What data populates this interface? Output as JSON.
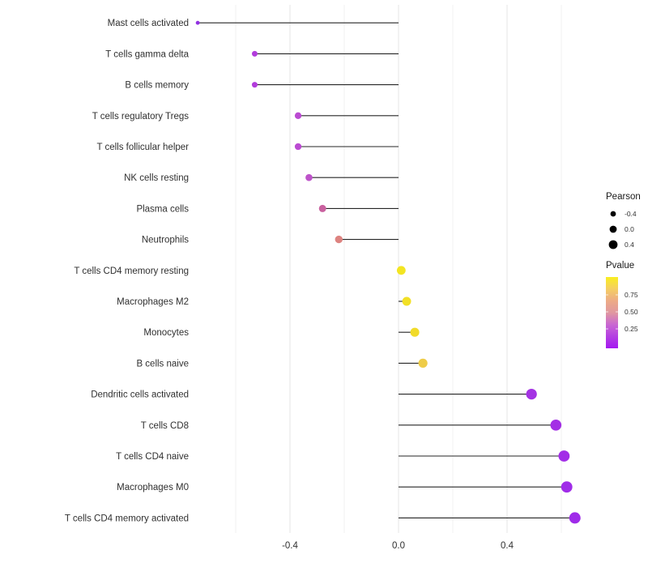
{
  "chart_data": {
    "type": "scatter",
    "subtype": "horizontal-lollipop",
    "title": "",
    "xlabel": "",
    "ylabel": "",
    "grid": "vertical-only",
    "baseline_x": 0.0,
    "xlim": [
      -0.76,
      0.7
    ],
    "x_tick_labels": [
      "-0.4",
      "0.0",
      "0.4"
    ],
    "x_tick_values": [
      -0.4,
      0.0,
      0.4
    ],
    "x_minor_grid_values": [
      -0.6,
      -0.2,
      0.2,
      0.6
    ],
    "rows": [
      {
        "label": "Mast cells activated",
        "pearson": -0.74,
        "color": "#9231E2"
      },
      {
        "label": "T cells gamma delta",
        "pearson": -0.53,
        "color": "#B23CDC"
      },
      {
        "label": "B cells memory",
        "pearson": -0.53,
        "color": "#B23CDC"
      },
      {
        "label": "T cells regulatory  Tregs",
        "pearson": -0.37,
        "color": "#BB4BD2"
      },
      {
        "label": "T cells follicular helper",
        "pearson": -0.37,
        "color": "#BB4BD2"
      },
      {
        "label": "NK cells resting",
        "pearson": -0.33,
        "color": "#BE53CA"
      },
      {
        "label": "Plasma cells",
        "pearson": -0.28,
        "color": "#C9619F"
      },
      {
        "label": "Neutrophils",
        "pearson": -0.22,
        "color": "#DD8380"
      },
      {
        "label": "T cells CD4 memory resting",
        "pearson": 0.01,
        "color": "#F3E522"
      },
      {
        "label": "Macrophages M2",
        "pearson": 0.03,
        "color": "#F2E026"
      },
      {
        "label": "Monocytes",
        "pearson": 0.06,
        "color": "#F1DB2A"
      },
      {
        "label": "B cells naive",
        "pearson": 0.09,
        "color": "#EECC48"
      },
      {
        "label": "Dendritic cells activated",
        "pearson": 0.49,
        "color": "#A433E3"
      },
      {
        "label": "T cells CD8",
        "pearson": 0.58,
        "color": "#A32FE5"
      },
      {
        "label": "T cells CD4 naive",
        "pearson": 0.61,
        "color": "#A22DE7"
      },
      {
        "label": "Macrophages M0",
        "pearson": 0.62,
        "color": "#A02CE8"
      },
      {
        "label": "T cells CD4 memory activated",
        "pearson": 0.65,
        "color": "#9F2BE9"
      }
    ],
    "legend": {
      "size_legend": {
        "title": "Pearson",
        "dot_color": "#000000",
        "entries": [
          {
            "label": "-0.4",
            "value": -0.4
          },
          {
            "label": "0.0",
            "value": 0.0
          },
          {
            "label": "0.4",
            "value": 0.4
          }
        ]
      },
      "color_legend": {
        "title": "Pvalue",
        "tick_labels": [
          "0.75",
          "0.50",
          "0.25"
        ],
        "gradient_top_to_bottom": [
          "#F9EE20",
          "#F5CE62",
          "#EDAB86",
          "#E098A0",
          "#C967D2",
          "#B43FE2",
          "#A419F0"
        ]
      }
    },
    "style": {
      "stem_color": "#262626",
      "grid_major_color": "#E4E4E4",
      "grid_minor_color": "#F1F1F1",
      "axis_text_color": "#303030",
      "legend_title_color": "#1A1A1A"
    }
  }
}
